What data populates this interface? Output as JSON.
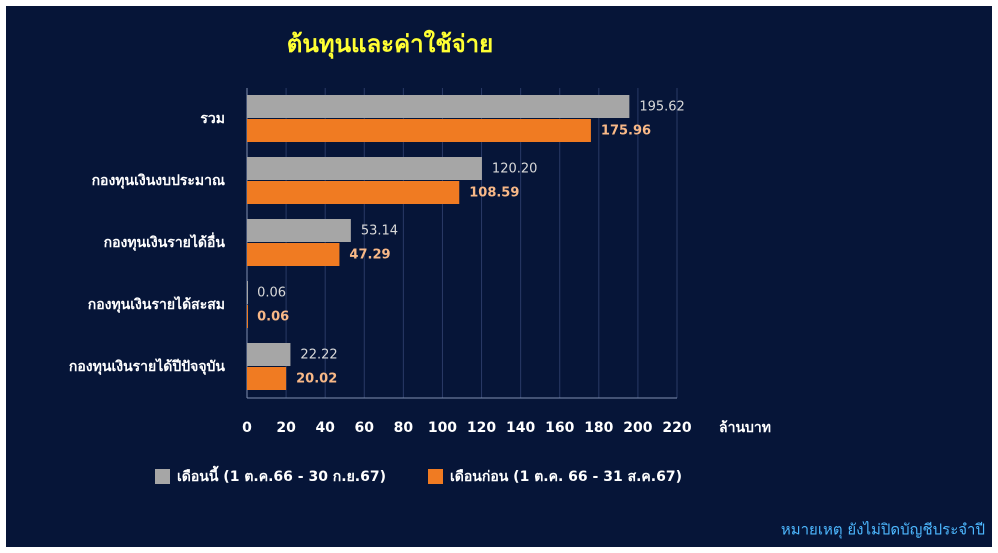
{
  "chart_data": {
    "type": "hbar",
    "title": "ต้นทุนและค่าใช้จ่าย",
    "categories": [
      "รวม",
      "กองทุนเงินงบประมาณ",
      "กองทุนเงินรายได้อื่น",
      "กองทุนเงินรายได้สะสม",
      "กองทุนเงินรายได้ปีปัจจุบัน"
    ],
    "series": [
      {
        "name": "เดือนนี้ (1 ต.ค.66 - 30 ก.ย.67)",
        "color": "#a6a6a6",
        "label_color": "#d9d9d9",
        "values": [
          195.62,
          120.2,
          53.14,
          0.06,
          22.22
        ],
        "value_labels": [
          "195.62",
          "120.20",
          "53.14",
          "0.06",
          "22.22"
        ]
      },
      {
        "name": "เดือนก่อน (1 ต.ค. 66 - 31 ส.ค.67)",
        "color": "#f07b22",
        "label_color": "#f8b887",
        "values": [
          175.96,
          108.59,
          47.29,
          0.06,
          20.02
        ],
        "value_labels": [
          "175.96",
          "108.59",
          "47.29",
          "0.06",
          "20.02"
        ]
      }
    ],
    "xlim": [
      0,
      220
    ],
    "xticks": [
      0,
      20,
      40,
      60,
      80,
      100,
      120,
      140,
      160,
      180,
      200,
      220
    ],
    "xlabel": "ล้านบาท",
    "grid": true,
    "note": "หมายเหตุ ยังไม่ปิดบัญชีประจำปี"
  }
}
